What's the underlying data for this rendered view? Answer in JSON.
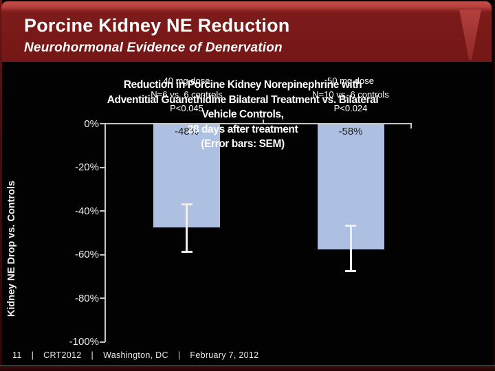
{
  "slide": {
    "title": "Porcine Kidney NE Reduction",
    "subtitle": "Neurohormonal Evidence of Denervation",
    "footer": {
      "page_number": "11",
      "separator": "|",
      "items": [
        "CRT2012",
        "Washington, DC",
        "February 7, 2012"
      ]
    }
  },
  "colors": {
    "banner_red": "#7c1b1a",
    "banner_highlight": "#c4504b",
    "background": "#000000",
    "bar_blue": "#aec0e2",
    "axis_gray": "#c6c6c6",
    "error_bar_white": "#f0f0f0",
    "value_label_dark": "#1f1f1f"
  },
  "chart_data": {
    "type": "bar",
    "title": "Reduction in Porcine Kidney Norepinephrine with Adventitial Guanethidine Bilateral Treatment vs. Bilateral Vehicle Controls, 28 days after treatment (Error bars: SEM)",
    "title_lines": [
      "Reduction in Porcine Kidney Norepinephrine with",
      "Adventitial Guanethidine Bilateral Treatment vs. Bilateral",
      "Vehicle Controls,",
      "28 days after treatment",
      "(Error bars: SEM)"
    ],
    "ylabel": "Kidney NE Drop vs. Controls",
    "xlabel": "",
    "ylim": [
      -100,
      0
    ],
    "ytick_labels": [
      "0%",
      "-20%",
      "-40%",
      "-60%",
      "-80%",
      "-100%"
    ],
    "grid": false,
    "legend": false,
    "bar_color": "#aec0e2",
    "bars": [
      {
        "dose_label": "40 mg dose",
        "n_label": "N=6 vs. 6 controls",
        "p_label": "P<0.045",
        "value": -48,
        "value_label": "-48%",
        "error_top": -37,
        "error_bottom": -59
      },
      {
        "dose_label": "50 mg dose",
        "n_label": "N=10 vs. 6 controls",
        "p_label": "P<0.024",
        "value": -58,
        "value_label": "-58%",
        "error_top": -47,
        "error_bottom": -68
      }
    ]
  }
}
